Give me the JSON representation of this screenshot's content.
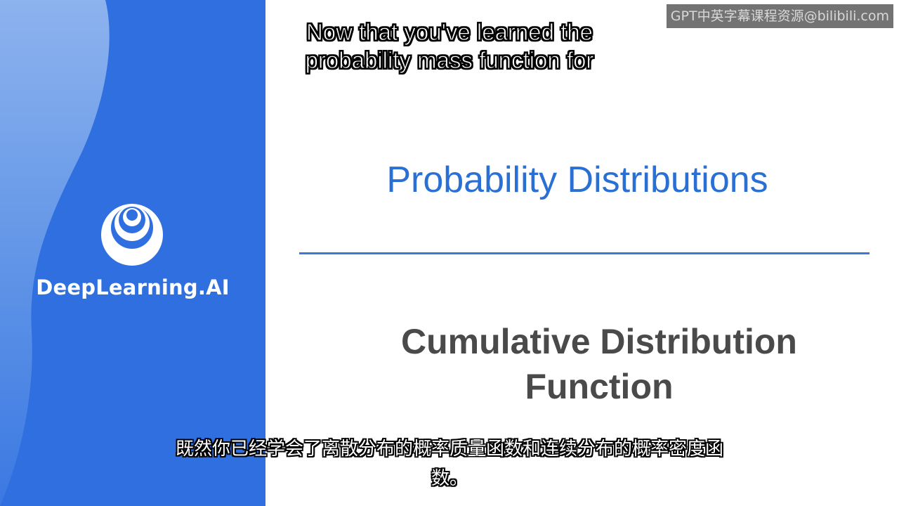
{
  "brand": {
    "name": "DeepLearning.AI",
    "panel_color": "#2f6fe0",
    "wave_color": "#7fa9ea",
    "logo_icon": "concentric-circles-logo-icon"
  },
  "watermark": {
    "text": "GPT中英字幕课程资源@bilibili.com"
  },
  "captions": {
    "english_lines": [
      "Now that you've learned the",
      "probability mass function for"
    ],
    "chinese_lines": [
      "既然你已经学会了离散分布的概率质量函数和连续分布的概率密度函",
      "数。"
    ]
  },
  "slide": {
    "title": "Probability Distributions",
    "title_color": "#2a6fd4",
    "divider_color": "#3a78d6",
    "subtitle_lines": [
      "Cumulative Distribution",
      "Function"
    ],
    "subtitle_color": "#4a4a4a"
  }
}
